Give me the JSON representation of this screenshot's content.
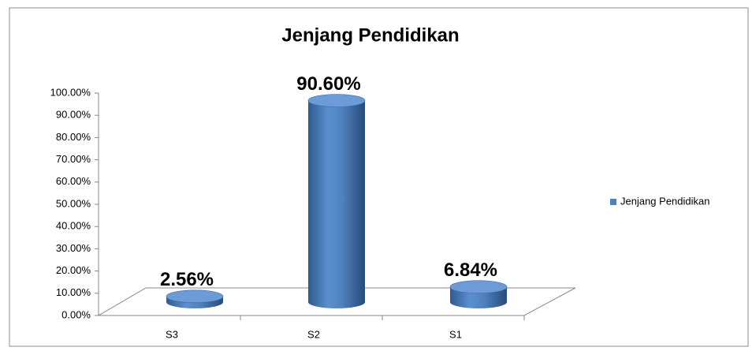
{
  "chart_data": {
    "type": "bar3d",
    "title": "Jenjang Pendidikan",
    "categories": [
      "S3",
      "S2",
      "S1"
    ],
    "series": [
      {
        "name": "Jenjang Pendidikan",
        "color": "#4f81bd",
        "values": [
          2.56,
          90.6,
          6.84
        ],
        "value_labels": [
          "2.56%",
          "90.60%",
          "6.84%"
        ]
      }
    ],
    "ylim": [
      0,
      100
    ],
    "yticks": [
      {
        "value": 0,
        "label": "0.00%"
      },
      {
        "value": 10,
        "label": "10.00%"
      },
      {
        "value": 20,
        "label": "20.00%"
      },
      {
        "value": 30,
        "label": "30.00%"
      },
      {
        "value": 40,
        "label": "40.00%"
      },
      {
        "value": 50,
        "label": "50.00%"
      },
      {
        "value": 60,
        "label": "60.00%"
      },
      {
        "value": 70,
        "label": "70.00%"
      },
      {
        "value": 80,
        "label": "80.00%"
      },
      {
        "value": 90,
        "label": "90.00%"
      },
      {
        "value": 100,
        "label": "100.00%"
      }
    ],
    "legend": "right"
  }
}
